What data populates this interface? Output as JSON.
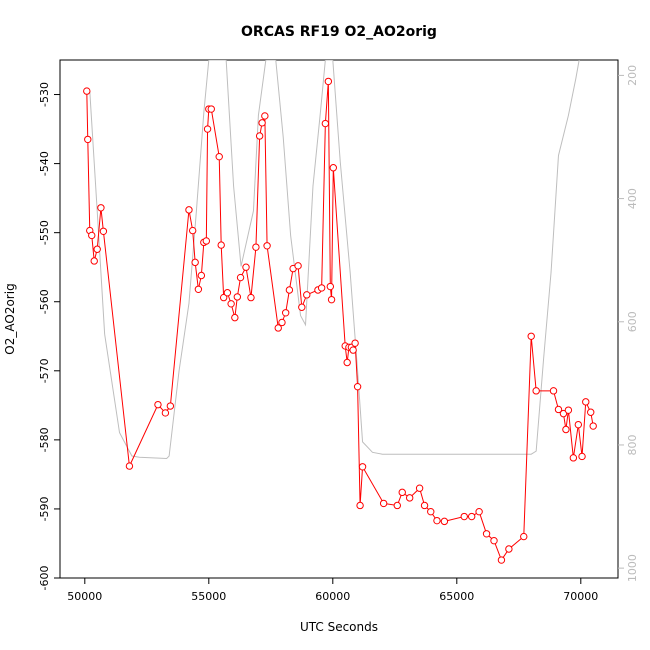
{
  "chart_data": {
    "type": "line",
    "title": "ORCAS RF19 O2_AO2orig",
    "xlabel": "UTC Seconds",
    "ylabel": "O2_AO2orig",
    "xlim": [
      49000,
      71500
    ],
    "ylim": [
      -600,
      -525
    ],
    "x_ticks": [
      "50000",
      "55000",
      "60000",
      "65000",
      "70000"
    ],
    "y_ticks": [
      "-600",
      "-590",
      "-580",
      "-570",
      "-560",
      "-550",
      "-540",
      "-530"
    ],
    "y2_ticks": [
      "200",
      "400",
      "600",
      "800",
      "1000"
    ],
    "y2_lim": [
      1016,
      175
    ],
    "colors": {
      "primary": "#ff0000",
      "secondary": "#bebebe"
    },
    "series": [
      {
        "values_x": [
          50080,
          50120,
          50200,
          50280,
          50380,
          50500,
          50650,
          50750,
          51800,
          52950,
          53250,
          53450,
          54200,
          54350,
          54450,
          54580,
          54700,
          54800,
          54900,
          54950,
          55000,
          55100,
          55420,
          55500,
          55600,
          55750,
          55900,
          56050,
          56150,
          56280,
          56500,
          56700,
          56900,
          57050,
          57150,
          57260,
          57350,
          57800,
          57950,
          58100,
          58250,
          58400,
          58600,
          58750,
          58950,
          59400,
          59550,
          59700,
          59820,
          59900,
          59950,
          60020,
          60500,
          60580,
          60650,
          60750,
          60820,
          60900,
          61000,
          61100,
          61200,
          62050,
          62600,
          62800,
          63100,
          63500,
          63700,
          63950,
          64200,
          64500,
          65300,
          65600,
          65900,
          66200,
          66500,
          66800,
          67100,
          67700,
          68000,
          68200,
          68900,
          69100,
          69300,
          69400,
          69500,
          69700,
          69900,
          70050,
          70200,
          70400,
          70500
        ],
        "values_y": [
          -529.5,
          -536.5,
          -549.7,
          -550.4,
          -554.1,
          -552.4,
          -546.4,
          -549.8,
          -583.8,
          -574.9,
          -576.1,
          -575.1,
          -546.7,
          -549.7,
          -554.3,
          -558.2,
          -556.2,
          -551.4,
          -551.2,
          -535.0,
          -532.1,
          -532.1,
          -539.0,
          -551.8,
          -559.4,
          -558.7,
          -560.3,
          -562.3,
          -559.3,
          -556.5,
          -555.0,
          -559.4,
          -552.1,
          -536.0,
          -534.1,
          -533.1,
          -551.9,
          -563.8,
          -563.0,
          -561.6,
          -558.3,
          -555.2,
          -554.8,
          -560.8,
          -559.0,
          -558.3,
          -558.0,
          -534.2,
          -528.1,
          -557.8,
          -559.7,
          -540.6,
          -566.4,
          -568.8,
          -566.6,
          -566.6,
          -567.0,
          -566.0,
          -572.3,
          -589.5,
          -583.9,
          -589.2,
          -589.5,
          -587.6,
          -588.4,
          -587.0,
          -589.5,
          -590.4,
          -591.7,
          -591.8,
          -591.1,
          -591.1,
          -590.4,
          -593.6,
          -594.6,
          -597.4,
          -595.8,
          -594.0,
          -565.0,
          -572.9,
          -572.9,
          -575.6,
          -576.2,
          -578.5,
          -575.7,
          -582.6,
          -577.8,
          -582.4,
          -574.5,
          -576.0,
          -578.0
        ]
      },
      {
        "values_x": [
          50200,
          50500,
          50800,
          51400,
          51900,
          52200,
          53300,
          53400,
          53800,
          54200,
          54500,
          54800,
          55000,
          55300,
          55700,
          56000,
          56300,
          56800,
          57000,
          57300,
          57700,
          58000,
          58300,
          58700,
          58900,
          59200,
          59500,
          59700,
          60000,
          60300,
          60700,
          61000,
          61200,
          61600,
          62000,
          62400,
          63000,
          64000,
          65000,
          66000,
          67000,
          67500,
          68000,
          68200,
          68500,
          68800,
          69100,
          69500,
          69800,
          70000,
          70150,
          70200,
          70300
        ],
        "values_y": [
          225,
          420,
          620,
          780,
          818,
          820,
          822,
          818,
          680,
          570,
          420,
          260,
          175,
          175,
          175,
          380,
          510,
          420,
          265,
          175,
          175,
          300,
          460,
          590,
          605,
          380,
          260,
          175,
          175,
          340,
          520,
          680,
          795,
          812,
          815,
          815,
          815,
          815,
          815,
          815,
          815,
          815,
          815,
          810,
          660,
          520,
          330,
          265,
          205,
          160,
          160,
          160,
          155
        ]
      }
    ]
  }
}
